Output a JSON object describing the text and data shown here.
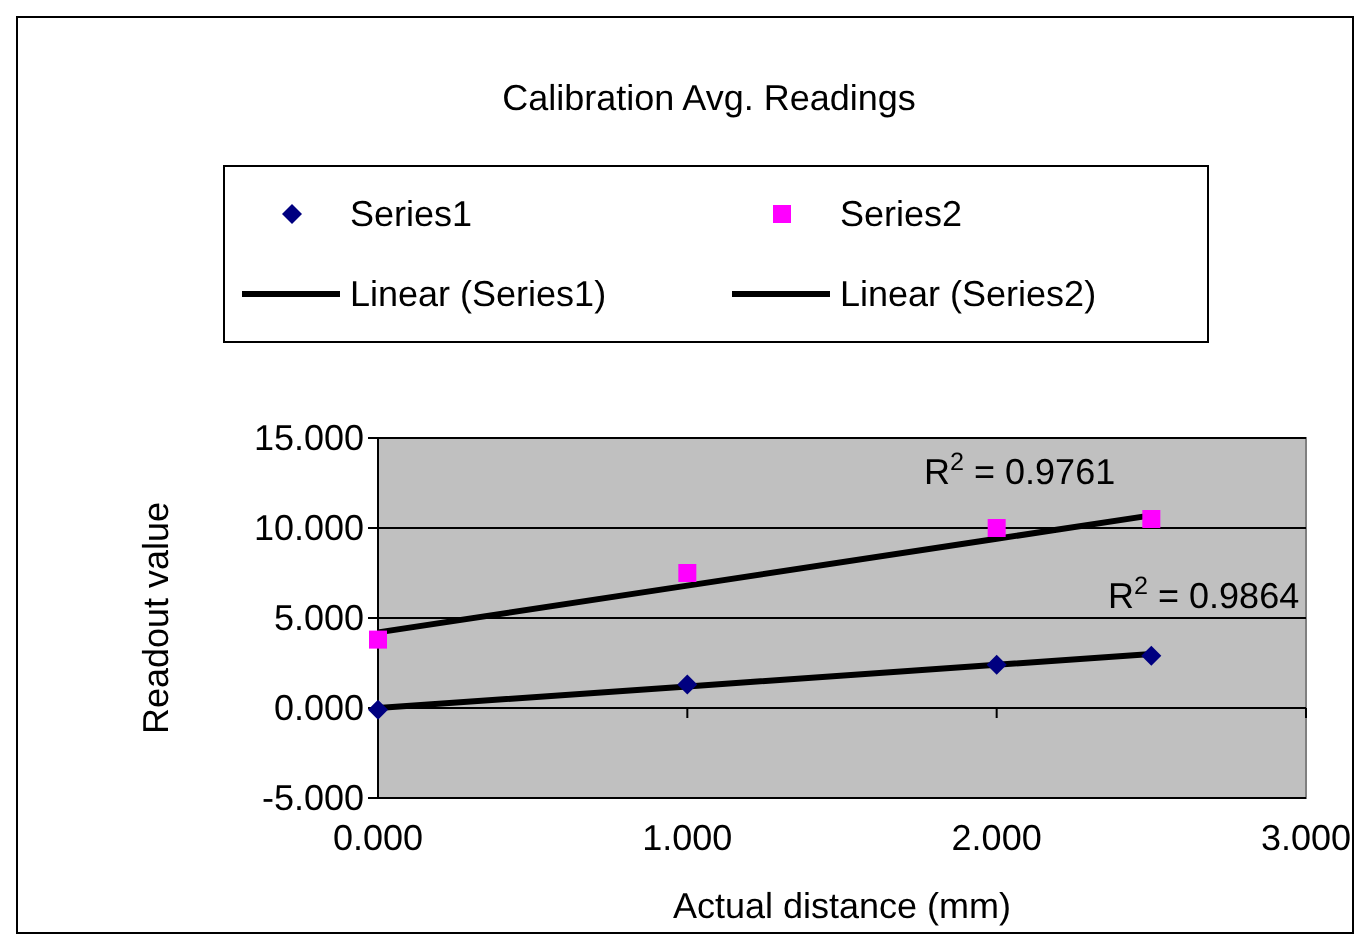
{
  "chart_data": {
    "type": "scatter",
    "title": "Calibration Avg. Readings",
    "xlabel": "Actual distance (mm)",
    "ylabel": "Readout value",
    "x": [
      0,
      1,
      2,
      2.5
    ],
    "series": [
      {
        "name": "Series1",
        "color": "#000080",
        "marker": "diamond",
        "values": [
          -0.1,
          1.3,
          2.4,
          2.9
        ]
      },
      {
        "name": "Series2",
        "color": "#ff00ff",
        "marker": "square",
        "values": [
          3.8,
          7.5,
          10.0,
          10.5
        ]
      },
      {
        "name": "Linear (Series1)",
        "type": "line",
        "color": "#000000",
        "marker": "none",
        "values": [
          0,
          1.2,
          2.4,
          3.0
        ]
      },
      {
        "name": "Linear (Series2)",
        "type": "line",
        "color": "#000000",
        "marker": "none",
        "values": [
          4.2,
          6.8,
          9.4,
          10.7
        ]
      }
    ],
    "annotations": [
      "R$^{2}$ = 0.9761",
      "R$^{2}$ = 0.9864"
    ],
    "xlim": [
      0,
      3
    ],
    "xticks": [
      {
        "value": 0,
        "label": "0.000"
      },
      {
        "value": 1,
        "label": "1.000"
      },
      {
        "value": 2,
        "label": "2.000"
      },
      {
        "value": 3,
        "label": "3.000"
      }
    ],
    "ylim": [
      -5,
      15
    ],
    "yticks": [
      {
        "value": -5,
        "label": "-5.000"
      },
      {
        "value": 0,
        "label": "0.000"
      },
      {
        "value": 5,
        "label": "5.000"
      },
      {
        "value": 10,
        "label": "10.000"
      },
      {
        "value": 15,
        "label": "15.000"
      }
    ],
    "grid": "y",
    "legend": "top"
  }
}
